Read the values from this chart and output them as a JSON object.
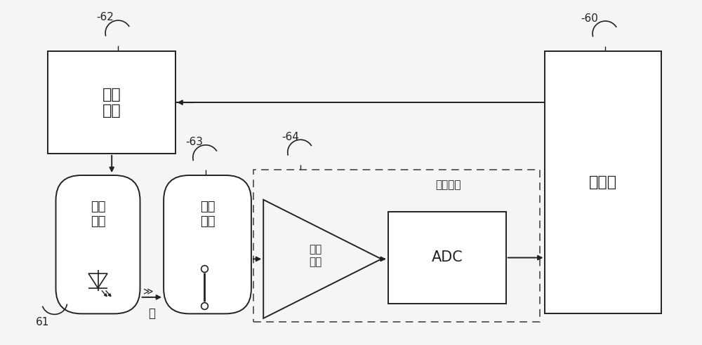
{
  "bg_color": "#f5f5f5",
  "label_62": "-62",
  "label_61": "61",
  "label_63": "-63",
  "label_64": "-64",
  "label_60": "-60",
  "box_driver_text": "驱动\n电路",
  "box_emitter_text": "光发\n射器",
  "box_detector_text": "光探\n测器",
  "box_amplifier_text": "放大\n电路",
  "box_adc_text": "ADC",
  "box_processor_text": "处理器",
  "box_adjuster_text": "调节电路",
  "light_label": "光",
  "line_color": "#222222",
  "box_color": "#ffffff",
  "dashed_color": "#555555"
}
